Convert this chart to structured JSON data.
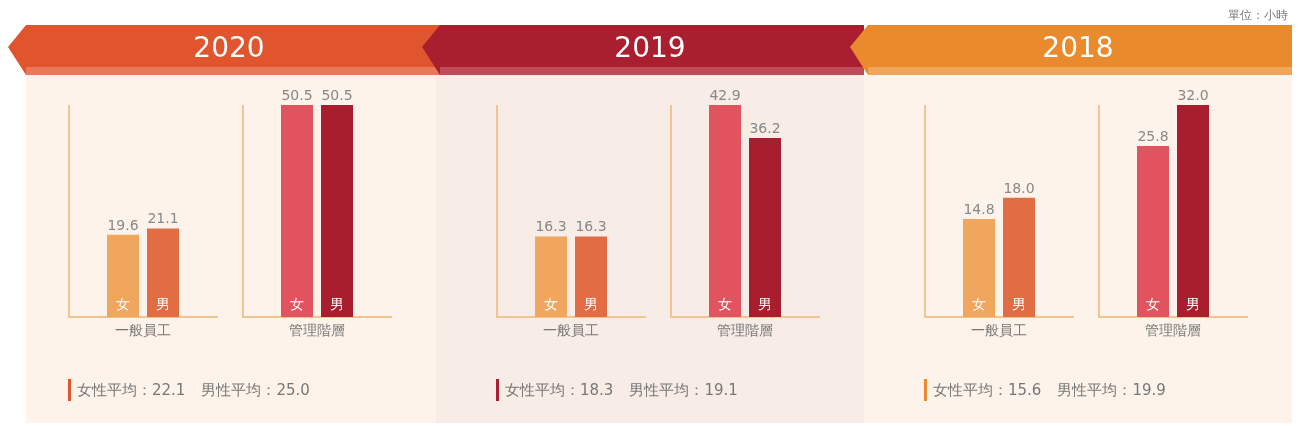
{
  "chart_data": [
    {
      "type": "bar",
      "title": "2020",
      "categories": [
        "一般員工",
        "管理階層"
      ],
      "series": [
        {
          "name": "女",
          "colors": [
            "#f0a65c",
            "#e0535f"
          ],
          "values": [
            19.6,
            50.5
          ],
          "value_labels": [
            "19.6",
            "50.5"
          ]
        },
        {
          "name": "男",
          "colors": [
            "#e26d44",
            "#a81e2e"
          ],
          "values": [
            21.1,
            50.5
          ],
          "value_labels": [
            "21.1",
            "50.5"
          ]
        }
      ],
      "annotations": [
        "女性平均：22.1",
        "男性平均：25.0"
      ]
    },
    {
      "type": "bar",
      "title": "2019",
      "categories": [
        "一般員工",
        "管理階層"
      ],
      "series": [
        {
          "name": "女",
          "colors": [
            "#f0a65c",
            "#e0535f"
          ],
          "values": [
            16.3,
            42.9
          ],
          "value_labels": [
            "16.3",
            "42.9"
          ]
        },
        {
          "name": "男",
          "colors": [
            "#e26d44",
            "#a81e2e"
          ],
          "values": [
            16.3,
            36.2
          ],
          "value_labels": [
            "16.3",
            "36.2"
          ]
        }
      ],
      "annotations": [
        "女性平均：18.3",
        "男性平均：19.1"
      ]
    },
    {
      "type": "bar",
      "title": "2018",
      "subtitle": "單位：小時",
      "categories": [
        "一般員工",
        "管理階層"
      ],
      "series": [
        {
          "name": "女",
          "colors": [
            "#f0a65c",
            "#e0535f"
          ],
          "values": [
            14.8,
            25.8
          ],
          "value_labels": [
            "14.8",
            "25.8"
          ]
        },
        {
          "name": "男",
          "colors": [
            "#e26d44",
            "#a81e2e"
          ],
          "values": [
            18.0,
            32.0
          ],
          "value_labels": [
            "18.0",
            "32.0"
          ]
        }
      ],
      "annotations": [
        "女性平均：15.6",
        "男性平均：19.9"
      ]
    }
  ]
}
